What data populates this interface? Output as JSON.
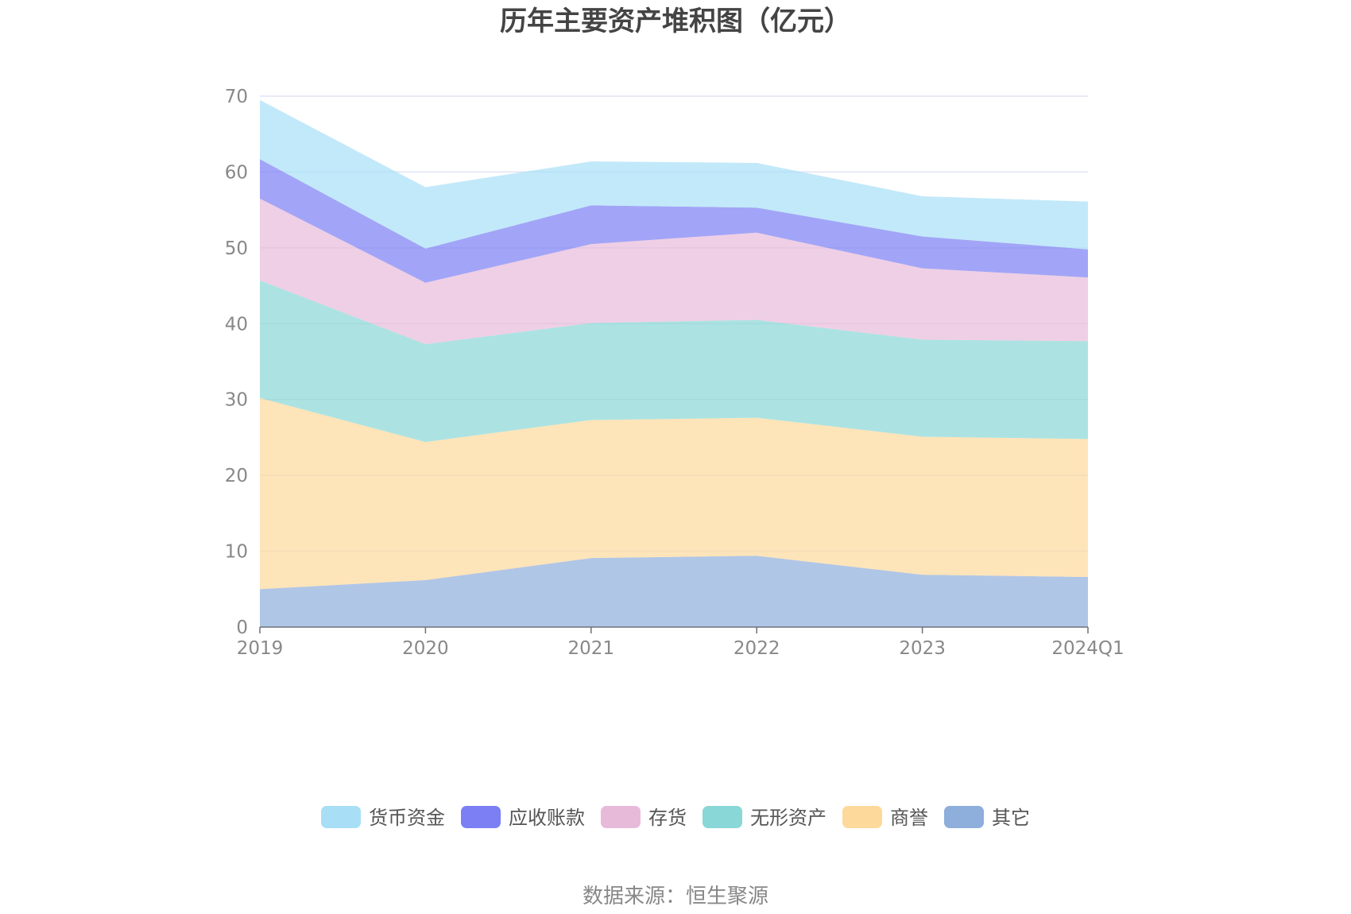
{
  "chart_data": {
    "type": "area",
    "stacked": true,
    "title": "历年主要资产堆积图（亿元）",
    "xlabel": "",
    "ylabel": "",
    "categories": [
      "2019",
      "2020",
      "2021",
      "2022",
      "2023",
      "2024Q1"
    ],
    "ylim": [
      0,
      70
    ],
    "yticks": [
      0,
      10,
      20,
      30,
      40,
      50,
      60,
      70
    ],
    "grid": true,
    "legend_position": "bottom",
    "series": [
      {
        "name": "其它",
        "color": "#8eaedb",
        "values": [
          5.0,
          6.2,
          9.1,
          9.4,
          6.9,
          6.6
        ]
      },
      {
        "name": "商誉",
        "color": "#fdd99b",
        "values": [
          25.2,
          18.2,
          18.2,
          18.2,
          18.2,
          18.2
        ]
      },
      {
        "name": "无形资产",
        "color": "#89d7d6",
        "values": [
          15.5,
          12.9,
          12.8,
          12.9,
          12.8,
          12.9
        ]
      },
      {
        "name": "存货",
        "color": "#e8bada",
        "values": [
          10.8,
          8.1,
          10.4,
          11.5,
          9.4,
          8.4
        ]
      },
      {
        "name": "应收账款",
        "color": "#7b7ff3",
        "values": [
          5.2,
          4.5,
          5.1,
          3.3,
          4.2,
          3.7
        ]
      },
      {
        "name": "货币资金",
        "color": "#a8dff7",
        "values": [
          7.8,
          8.1,
          5.8,
          5.9,
          5.3,
          6.3
        ]
      }
    ],
    "legend_order": [
      "货币资金",
      "应收账款",
      "存货",
      "无形资产",
      "商誉",
      "其它"
    ],
    "source": "数据来源：恒生聚源"
  }
}
